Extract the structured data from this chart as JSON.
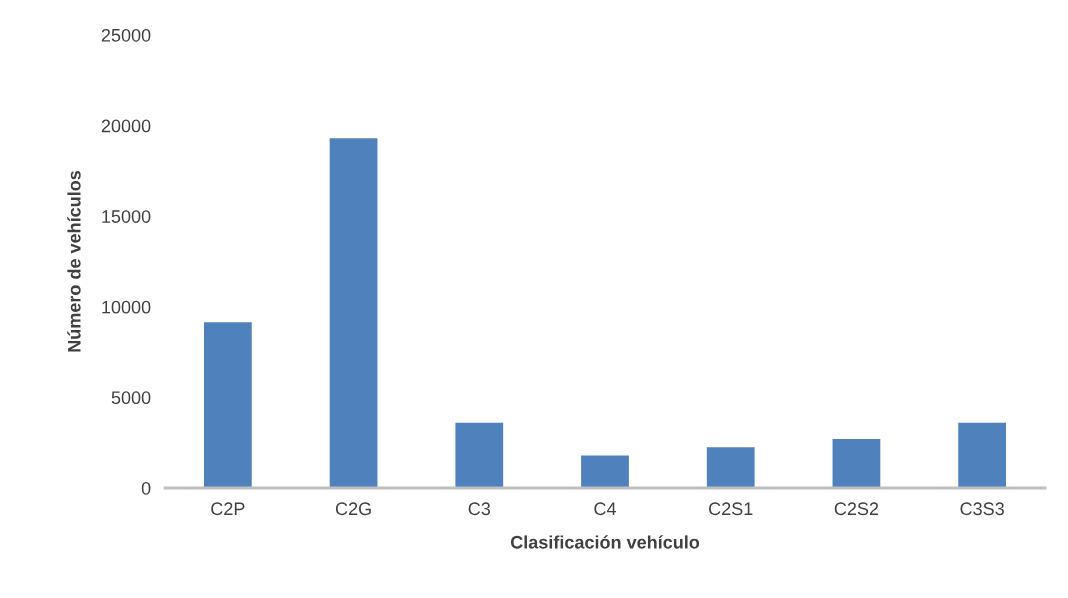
{
  "chart_data": {
    "type": "bar",
    "categories": [
      "C2P",
      "C2G",
      "C3",
      "C4",
      "C2S1",
      "C2S2",
      "C3S3"
    ],
    "values": [
      9150,
      19300,
      3600,
      1800,
      2250,
      2700,
      3600
    ],
    "color": "#4f81bd",
    "xlabel": "Clasificación vehículo",
    "ylabel": "Número de vehículos",
    "ylim": [
      0,
      25000
    ],
    "yticks": [
      0,
      5000,
      10000,
      15000,
      20000,
      25000
    ],
    "grid": false,
    "legend": false
  }
}
